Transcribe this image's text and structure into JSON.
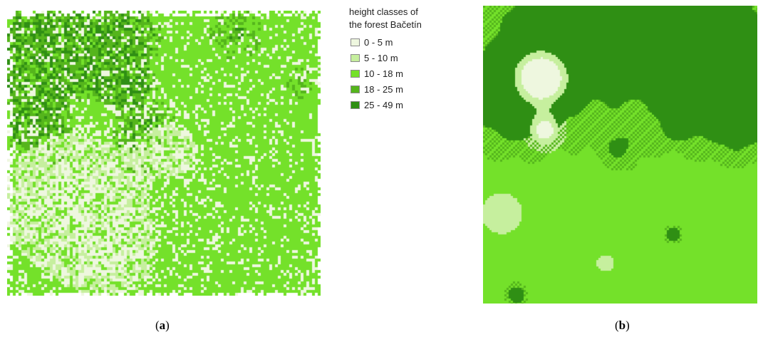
{
  "legend": {
    "title_line1": "height classes of",
    "title_line2": "the forest Bačetín",
    "items": [
      {
        "label": "0 - 5 m",
        "color": "#eef7df"
      },
      {
        "label": "5 - 10 m",
        "color": "#c6ef9e"
      },
      {
        "label": "10 - 18 m",
        "color": "#74e12a"
      },
      {
        "label": "18 - 25 m",
        "color": "#55b51c"
      },
      {
        "label": "25 - 49 m",
        "color": "#2f8f14"
      }
    ]
  },
  "captions": {
    "a": {
      "open": "(",
      "letter": "a",
      "close": ")"
    },
    "b": {
      "open": "(",
      "letter": "b",
      "close": ")"
    }
  }
}
